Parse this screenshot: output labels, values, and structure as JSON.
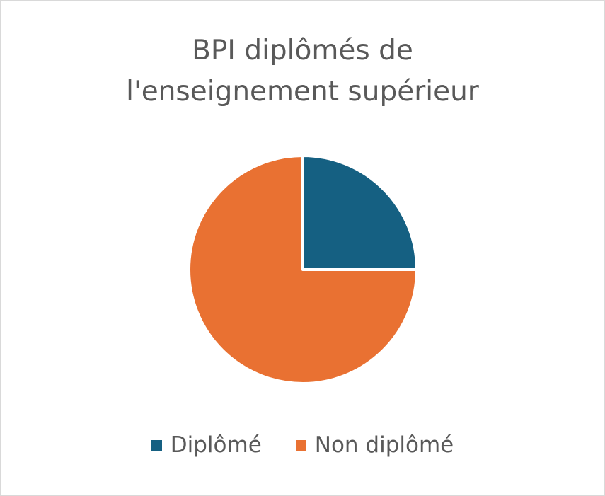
{
  "chart_data": {
    "type": "pie",
    "title": "BPI diplômés de l'enseignement supérieur",
    "categories": [
      "Diplômé",
      "Non diplômé"
    ],
    "values": [
      25,
      75
    ],
    "colors": [
      "#156082",
      "#e97132"
    ],
    "legend": "bottom"
  }
}
